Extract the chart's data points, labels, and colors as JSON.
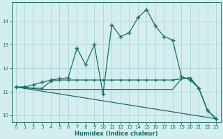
{
  "xlabel": "Humidex (Indice chaleur)",
  "bg_color": "#d4eeee",
  "grid_color": "#aad4d4",
  "line_color": "#1a6b6b",
  "xlim": [
    -0.5,
    23.5
  ],
  "ylim": [
    9.7,
    14.8
  ],
  "xticks": [
    0,
    1,
    2,
    3,
    4,
    5,
    6,
    7,
    8,
    9,
    10,
    11,
    12,
    13,
    14,
    15,
    16,
    17,
    18,
    19,
    20,
    21,
    22,
    23
  ],
  "yticks": [
    10,
    11,
    12,
    13,
    14
  ],
  "line1_x": [
    0,
    1,
    2,
    3,
    4,
    5,
    6,
    7,
    8,
    9,
    10,
    11,
    12,
    13,
    14,
    15,
    16,
    17,
    18,
    19,
    20,
    21,
    22,
    23
  ],
  "line1_y": [
    11.2,
    11.2,
    11.3,
    11.4,
    11.5,
    11.55,
    11.6,
    12.85,
    12.15,
    13.0,
    10.9,
    13.85,
    13.35,
    13.5,
    14.15,
    14.5,
    13.8,
    13.35,
    13.2,
    11.65,
    11.5,
    11.15,
    10.2,
    9.85
  ],
  "line2_x": [
    0,
    1,
    2,
    3,
    4,
    5,
    6,
    7,
    8,
    9,
    10,
    11,
    12,
    13,
    14,
    15,
    16,
    17,
    18,
    19,
    20,
    21,
    22,
    23
  ],
  "line2_y": [
    11.2,
    11.2,
    11.15,
    11.15,
    11.45,
    11.5,
    11.5,
    11.5,
    11.5,
    11.5,
    11.5,
    11.5,
    11.5,
    11.5,
    11.5,
    11.5,
    11.5,
    11.5,
    11.5,
    11.55,
    11.6,
    11.15,
    10.2,
    9.85
  ],
  "line3_x": [
    0,
    23
  ],
  "line3_y": [
    11.2,
    9.85
  ],
  "line4_x": [
    0,
    3,
    4,
    5,
    6,
    7,
    8,
    9,
    10,
    11,
    12,
    13,
    14,
    15,
    16,
    17,
    18,
    19,
    20,
    21,
    22,
    23
  ],
  "line4_y": [
    11.2,
    11.1,
    11.1,
    11.1,
    11.1,
    11.1,
    11.1,
    11.1,
    11.1,
    11.1,
    11.1,
    11.1,
    11.1,
    11.1,
    11.1,
    11.1,
    11.1,
    11.55,
    11.6,
    11.15,
    10.2,
    9.85
  ]
}
